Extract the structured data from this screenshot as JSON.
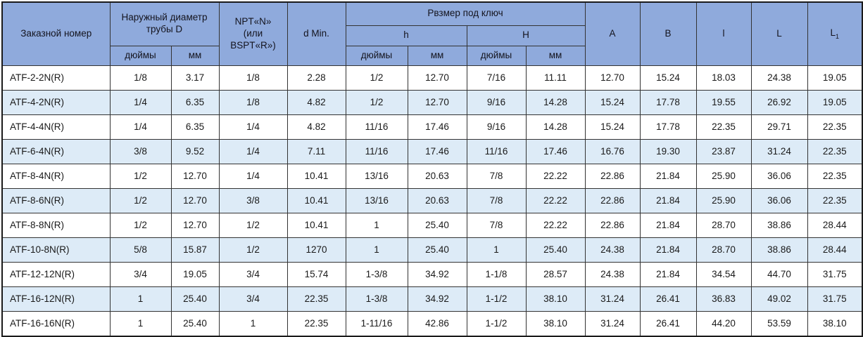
{
  "colors": {
    "header_bg": "#8faadc",
    "row_bg": "#ffffff",
    "row_alt_bg": "#ddebf7",
    "border": "#333333",
    "text": "#1a1a1a"
  },
  "table": {
    "headers": {
      "order_number": "Заказной номер",
      "outer_diameter": "Наружный диаметр трубы D",
      "inches_d": "дюймы",
      "mm_d": "мм",
      "npt": "NPT«N»\n(или\nBSPT«R»)",
      "d_min": "d Min.",
      "wrench_size": "Рвзмер под ключ",
      "h_small": "h",
      "h_big": "H",
      "inches_h": "дюймы",
      "mm_h": "мм",
      "inches_hh": "дюймы",
      "mm_hh": "мм",
      "col_a": "A",
      "col_b": "B",
      "col_l_small": "l",
      "col_l_big": "L",
      "col_l1_base": "L",
      "col_l1_sub": "1"
    },
    "rows": [
      [
        "ATF-2-2N(R)",
        "1/8",
        "3.17",
        "1/8",
        "2.28",
        "1/2",
        "12.70",
        "7/16",
        "11.11",
        "12.70",
        "15.24",
        "18.03",
        "24.38",
        "19.05"
      ],
      [
        "ATF-4-2N(R)",
        "1/4",
        "6.35",
        "1/8",
        "4.82",
        "1/2",
        "12.70",
        "9/16",
        "14.28",
        "15.24",
        "17.78",
        "19.55",
        "26.92",
        "19.05"
      ],
      [
        "ATF-4-4N(R)",
        "1/4",
        "6.35",
        "1/4",
        "4.82",
        "11/16",
        "17.46",
        "9/16",
        "14.28",
        "15.24",
        "17.78",
        "22.35",
        "29.71",
        "22.35"
      ],
      [
        "ATF-6-4N(R)",
        "3/8",
        "9.52",
        "1/4",
        "7.11",
        "11/16",
        "17.46",
        "11/16",
        "17.46",
        "16.76",
        "19.30",
        "23.87",
        "31.24",
        "22.35"
      ],
      [
        "ATF-8-4N(R)",
        "1/2",
        "12.70",
        "1/4",
        "10.41",
        "13/16",
        "20.63",
        "7/8",
        "22.22",
        "22.86",
        "21.84",
        "25.90",
        "36.06",
        "22.35"
      ],
      [
        "ATF-8-6N(R)",
        "1/2",
        "12.70",
        "3/8",
        "10.41",
        "13/16",
        "20.63",
        "7/8",
        "22.22",
        "22.86",
        "21.84",
        "25.90",
        "36.06",
        "22.35"
      ],
      [
        "ATF-8-8N(R)",
        "1/2",
        "12.70",
        "1/2",
        "10.41",
        "1",
        "25.40",
        "7/8",
        "22.22",
        "22.86",
        "21.84",
        "28.70",
        "38.86",
        "28.44"
      ],
      [
        "ATF-10-8N(R)",
        "5/8",
        "15.87",
        "1/2",
        "1270",
        "1",
        "25.40",
        "1",
        "25.40",
        "24.38",
        "21.84",
        "28.70",
        "38.86",
        "28.44"
      ],
      [
        "ATF-12-12N(R)",
        "3/4",
        "19.05",
        "3/4",
        "15.74",
        "1-3/8",
        "34.92",
        "1-1/8",
        "28.57",
        "24.38",
        "21.84",
        "34.54",
        "44.70",
        "31.75"
      ],
      [
        "ATF-16-12N(R)",
        "1",
        "25.40",
        "3/4",
        "22.35",
        "1-3/8",
        "34.92",
        "1-1/2",
        "38.10",
        "31.24",
        "26.41",
        "36.83",
        "49.02",
        "31.75"
      ],
      [
        "ATF-16-16N(R)",
        "1",
        "25.40",
        "1",
        "22.35",
        "1-11/16",
        "42.86",
        "1-1/2",
        "38.10",
        "31.24",
        "26.41",
        "44.20",
        "53.59",
        "38.10"
      ]
    ]
  }
}
